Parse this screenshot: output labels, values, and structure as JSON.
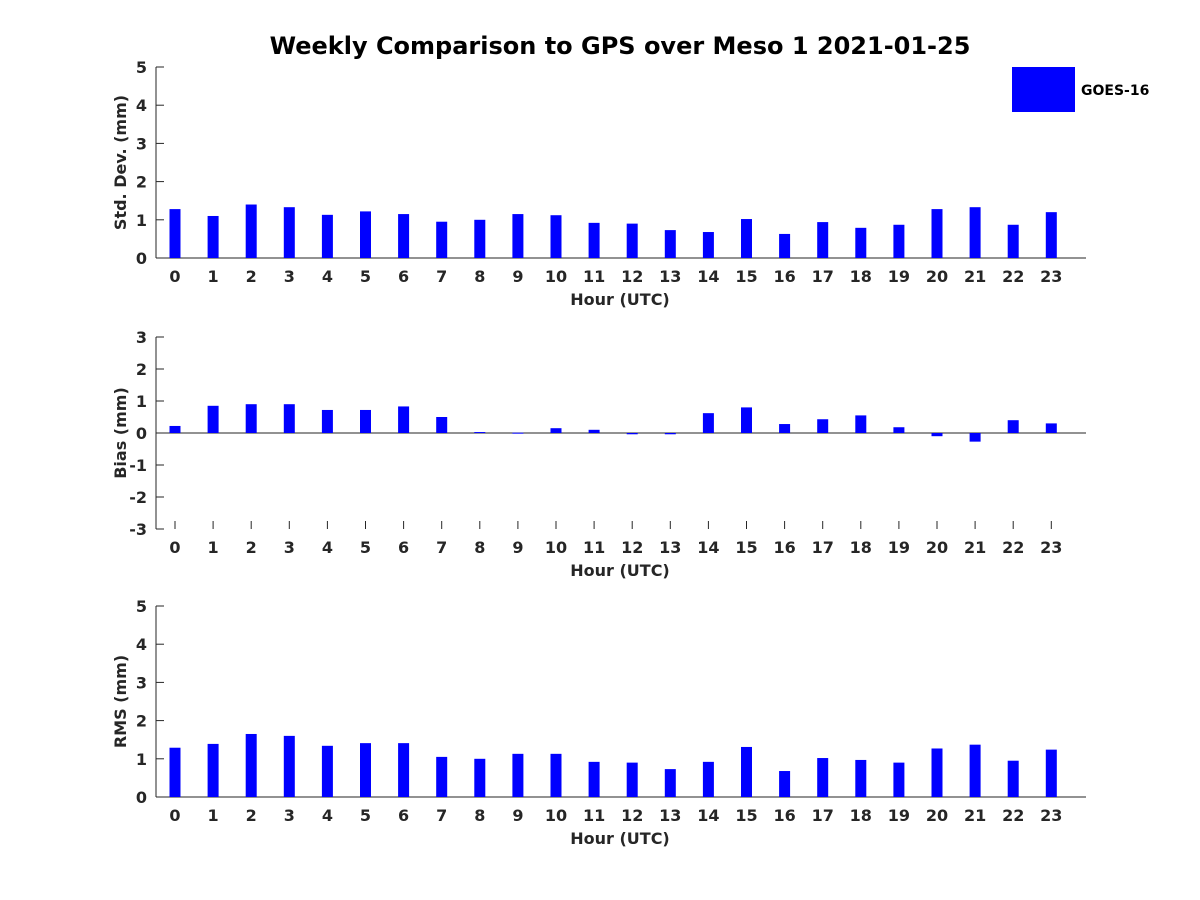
{
  "chart_data": {
    "type": "bar",
    "title": "Weekly Comparison to GPS over Meso 1 2021-01-25",
    "legend": {
      "entries": [
        "GOES-16"
      ],
      "position": "top-right",
      "color": "#0000ff"
    },
    "panels": [
      {
        "name": "std-dev",
        "ylabel": "Std. Dev. (mm)",
        "xlabel": "Hour (UTC)",
        "ylim": [
          0,
          5
        ],
        "yticks": [
          0,
          1,
          2,
          3,
          4,
          5
        ],
        "categories": [
          0,
          1,
          2,
          3,
          4,
          5,
          6,
          7,
          8,
          9,
          10,
          11,
          12,
          13,
          14,
          15,
          16,
          17,
          18,
          19,
          20,
          21,
          22,
          23
        ],
        "series": [
          {
            "name": "GOES-16",
            "color": "#0000ff",
            "values": [
              1.28,
              1.1,
              1.4,
              1.33,
              1.13,
              1.22,
              1.15,
              0.95,
              1.0,
              1.15,
              1.12,
              0.92,
              0.9,
              0.73,
              0.68,
              1.02,
              0.63,
              0.94,
              0.79,
              0.87,
              1.28,
              1.33,
              0.87,
              1.2
            ]
          }
        ]
      },
      {
        "name": "bias",
        "ylabel": "Bias (mm)",
        "xlabel": "Hour (UTC)",
        "ylim": [
          -3,
          3
        ],
        "yticks": [
          -3,
          -2,
          -1,
          0,
          1,
          2,
          3
        ],
        "categories": [
          0,
          1,
          2,
          3,
          4,
          5,
          6,
          7,
          8,
          9,
          10,
          11,
          12,
          13,
          14,
          15,
          16,
          17,
          18,
          19,
          20,
          21,
          22,
          23
        ],
        "series": [
          {
            "name": "GOES-16",
            "color": "#0000ff",
            "values": [
              0.22,
              0.85,
              0.9,
              0.9,
              0.72,
              0.72,
              0.83,
              0.5,
              0.03,
              0.01,
              0.15,
              0.1,
              -0.04,
              -0.04,
              0.62,
              0.8,
              0.28,
              0.43,
              0.55,
              0.18,
              -0.1,
              -0.27,
              0.4,
              0.3
            ]
          }
        ]
      },
      {
        "name": "rms",
        "ylabel": "RMS (mm)",
        "xlabel": "Hour (UTC)",
        "ylim": [
          0,
          5
        ],
        "yticks": [
          0,
          1,
          2,
          3,
          4,
          5
        ],
        "categories": [
          0,
          1,
          2,
          3,
          4,
          5,
          6,
          7,
          8,
          9,
          10,
          11,
          12,
          13,
          14,
          15,
          16,
          17,
          18,
          19,
          20,
          21,
          22,
          23
        ],
        "series": [
          {
            "name": "GOES-16",
            "color": "#0000ff",
            "values": [
              1.29,
              1.39,
              1.65,
              1.6,
              1.34,
              1.41,
              1.41,
              1.05,
              1.0,
              1.13,
              1.13,
              0.92,
              0.9,
              0.73,
              0.92,
              1.31,
              0.68,
              1.02,
              0.97,
              0.9,
              1.27,
              1.37,
              0.95,
              1.24
            ]
          }
        ]
      }
    ]
  }
}
